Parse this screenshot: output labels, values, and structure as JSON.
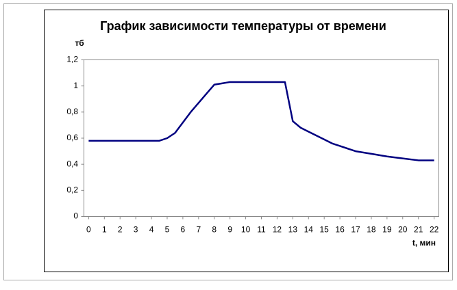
{
  "chart_data": {
    "type": "line",
    "title": "График зависимости температуры от времени",
    "y_label": "тб",
    "x_label": "t, мин",
    "x": [
      0,
      1,
      2,
      3,
      4,
      4.5,
      5,
      5.5,
      6,
      6.5,
      7,
      7.5,
      8,
      8.5,
      9,
      10,
      11,
      12,
      12.5,
      13,
      13.5,
      14,
      15,
      15.5,
      16,
      17,
      18,
      19,
      20,
      21,
      22
    ],
    "series": [
      {
        "color": "#000080",
        "values": [
          0.58,
          0.58,
          0.58,
          0.58,
          0.58,
          0.58,
          0.6,
          0.64,
          0.72,
          0.8,
          0.87,
          0.94,
          1.01,
          1.02,
          1.03,
          1.03,
          1.03,
          1.03,
          1.03,
          0.73,
          0.68,
          0.65,
          0.59,
          0.56,
          0.54,
          0.5,
          0.48,
          0.46,
          0.445,
          0.43,
          0.43
        ]
      }
    ],
    "xlim": [
      -0.3,
      22.3
    ],
    "xticks": [
      0,
      1,
      2,
      3,
      4,
      5,
      6,
      7,
      8,
      9,
      10,
      11,
      12,
      13,
      14,
      15,
      16,
      17,
      18,
      19,
      20,
      21,
      22
    ],
    "ylim": [
      0,
      1.2
    ],
    "yticks": [
      0,
      {
        "value": 0.2,
        "label": "0,2"
      },
      {
        "value": 0.4,
        "label": "0,4"
      },
      {
        "value": 0.6,
        "label": "0,6"
      },
      {
        "value": 0.8,
        "label": "0,8"
      },
      1,
      {
        "value": 1.2,
        "label": "1,2"
      }
    ]
  }
}
